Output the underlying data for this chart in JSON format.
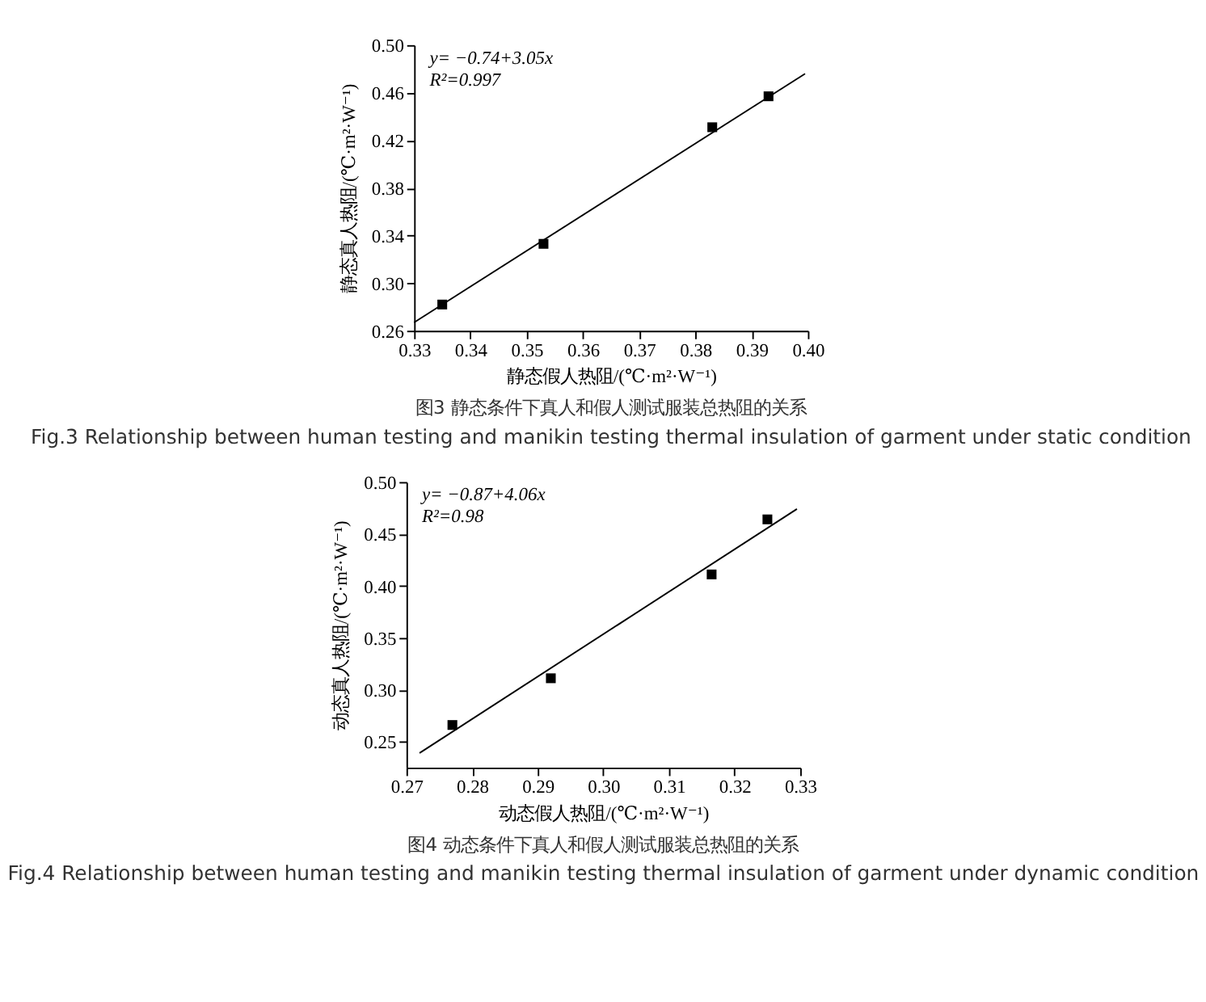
{
  "chart_data": [
    {
      "type": "scatter",
      "title": "图3 静态条件下真人和假人测试服装总热阻的关系",
      "subtitle": "Fig.3 Relationship between human testing and manikin testing thermal insulation of garment under static condition",
      "xlabel": "静态假人热阻/(℃·m²·W⁻¹)",
      "ylabel": "静态真人热阻/(℃·m²·W⁻¹)",
      "annotations": [
        "y= −0.74+3.05x",
        "R²=0.997"
      ],
      "xlim": [
        0.33,
        0.4
      ],
      "xticks": [
        0.33,
        0.34,
        0.35,
        0.36,
        0.37,
        0.38,
        0.39,
        {
          "value": 0.4,
          "label": "0.40"
        }
      ],
      "ylim": [
        0.26,
        0.5
      ],
      "yticks": [
        0.26,
        {
          "value": 0.3,
          "label": "0.30"
        },
        0.34,
        0.38,
        0.42,
        0.46,
        {
          "value": 0.5,
          "label": "0.50"
        }
      ],
      "grid": false,
      "series": [
        {
          "color": "#000000",
          "marker": "square",
          "x": [
            0.335,
            0.353,
            0.383,
            0.393
          ],
          "values": [
            0.282,
            0.333,
            0.431,
            0.457
          ]
        },
        {
          "type": "line",
          "color": "#000000",
          "x": [
            0.33,
            0.3995
          ],
          "values": [
            0.267,
            0.476
          ]
        }
      ]
    },
    {
      "type": "scatter",
      "title": "图4 动态条件下真人和假人测试服装总热阻的关系",
      "subtitle": "Fig.4 Relationship between human testing and manikin testing thermal insulation of garment under dynamic condition",
      "xlabel": "动态假人热阻/(℃·m²·W⁻¹)",
      "ylabel": "动态真人热阻/(℃·m²·W⁻¹)",
      "annotations": [
        "y= −0.87+4.06x",
        "R²=0.98"
      ],
      "xlim": [
        0.27,
        0.33
      ],
      "xticks": [
        0.27,
        0.28,
        0.29,
        {
          "value": 0.3,
          "label": "0.30"
        },
        0.31,
        0.32,
        0.33
      ],
      "ylim": [
        0.225,
        0.5
      ],
      "yticks": [
        0.25,
        {
          "value": 0.3,
          "label": "0.30"
        },
        0.35,
        {
          "value": 0.4,
          "label": "0.40"
        },
        0.45,
        {
          "value": 0.5,
          "label": "0.50"
        }
      ],
      "grid": false,
      "series": [
        {
          "color": "#000000",
          "marker": "square",
          "x": [
            0.277,
            0.292,
            0.3165,
            0.325
          ],
          "values": [
            0.266,
            0.311,
            0.411,
            0.464
          ]
        },
        {
          "type": "line",
          "color": "#000000",
          "x": [
            0.272,
            0.3295
          ],
          "values": [
            0.239,
            0.474
          ]
        }
      ]
    }
  ]
}
